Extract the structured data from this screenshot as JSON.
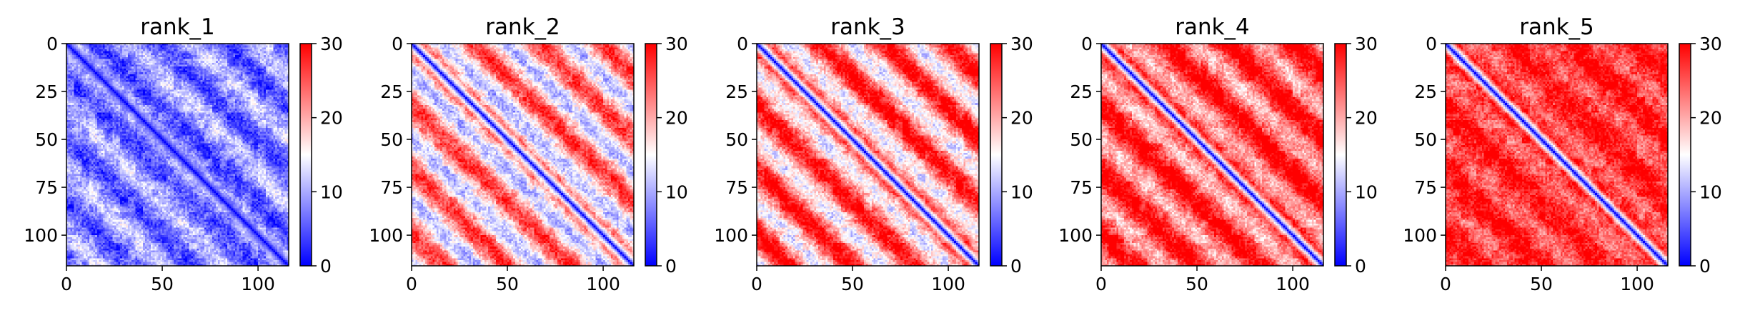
{
  "chart_data": [
    {
      "type": "heatmap",
      "title": "rank_1",
      "rows": 116,
      "cols": 116,
      "xlim": [
        0,
        116
      ],
      "ylim": [
        116,
        0
      ],
      "xticks": [
        0,
        50,
        100
      ],
      "yticks": [
        0,
        25,
        50,
        75,
        100
      ],
      "colorbar": {
        "range": [
          0,
          30
        ],
        "ticks": [
          0,
          10,
          20,
          30
        ],
        "colormap": "bwr"
      },
      "pattern": {
        "base_distance": 8,
        "stripe_period": 33,
        "stripe_phase": 0,
        "stripe_amplitude": 4
      },
      "grid": false
    },
    {
      "type": "heatmap",
      "title": "rank_2",
      "rows": 116,
      "cols": 116,
      "xlim": [
        0,
        116
      ],
      "ylim": [
        116,
        0
      ],
      "xticks": [
        0,
        50,
        100
      ],
      "yticks": [
        0,
        25,
        50,
        75,
        100
      ],
      "colorbar": {
        "range": [
          0,
          30
        ],
        "ticks": [
          0,
          10,
          20,
          30
        ],
        "colormap": "bwr"
      },
      "pattern": {
        "base_distance": 19,
        "stripe_period": 33,
        "stripe_phase": 0,
        "stripe_amplitude": 8
      },
      "grid": false
    },
    {
      "type": "heatmap",
      "title": "rank_3",
      "rows": 116,
      "cols": 116,
      "xlim": [
        0,
        116
      ],
      "ylim": [
        116,
        0
      ],
      "xticks": [
        0,
        50,
        100
      ],
      "yticks": [
        0,
        25,
        50,
        75,
        100
      ],
      "colorbar": {
        "range": [
          0,
          30
        ],
        "ticks": [
          0,
          10,
          20,
          30
        ],
        "colormap": "bwr"
      },
      "pattern": {
        "base_distance": 22,
        "stripe_period": 33,
        "stripe_phase": 0,
        "stripe_amplitude": 8
      },
      "grid": false
    },
    {
      "type": "heatmap",
      "title": "rank_4",
      "rows": 116,
      "cols": 116,
      "xlim": [
        0,
        116
      ],
      "ylim": [
        116,
        0
      ],
      "xticks": [
        0,
        50,
        100
      ],
      "yticks": [
        0,
        25,
        50,
        75,
        100
      ],
      "colorbar": {
        "range": [
          0,
          30
        ],
        "ticks": [
          0,
          10,
          20,
          30
        ],
        "colormap": "bwr"
      },
      "pattern": {
        "base_distance": 25,
        "stripe_period": 33,
        "stripe_phase": 0,
        "stripe_amplitude": 6
      },
      "grid": false
    },
    {
      "type": "heatmap",
      "title": "rank_5",
      "rows": 116,
      "cols": 116,
      "xlim": [
        0,
        116
      ],
      "ylim": [
        116,
        0
      ],
      "xticks": [
        0,
        50,
        100
      ],
      "yticks": [
        0,
        25,
        50,
        75,
        100
      ],
      "colorbar": {
        "range": [
          0,
          30
        ],
        "ticks": [
          0,
          10,
          20,
          30
        ],
        "colormap": "bwr"
      },
      "pattern": {
        "base_distance": 27,
        "stripe_period": 33,
        "stripe_phase": 0,
        "stripe_amplitude": 3
      },
      "grid": false
    }
  ]
}
